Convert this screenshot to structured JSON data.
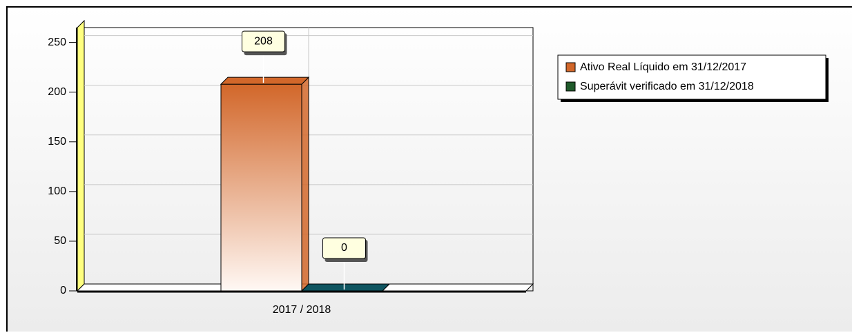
{
  "chart_data": {
    "type": "bar3d",
    "categories": [
      "2017 / 2018"
    ],
    "series": [
      {
        "name": "Ativo Real Líquido em 31/12/2017",
        "color": "#d2672a",
        "values": [
          208
        ]
      },
      {
        "name": "Superávit verificado em 31/12/2018",
        "color": "#0f5560",
        "values": [
          0
        ]
      }
    ],
    "ylim": [
      0,
      265
    ],
    "yticks": [
      0,
      50,
      100,
      150,
      200,
      250
    ],
    "grid": true,
    "legend": "right"
  }
}
